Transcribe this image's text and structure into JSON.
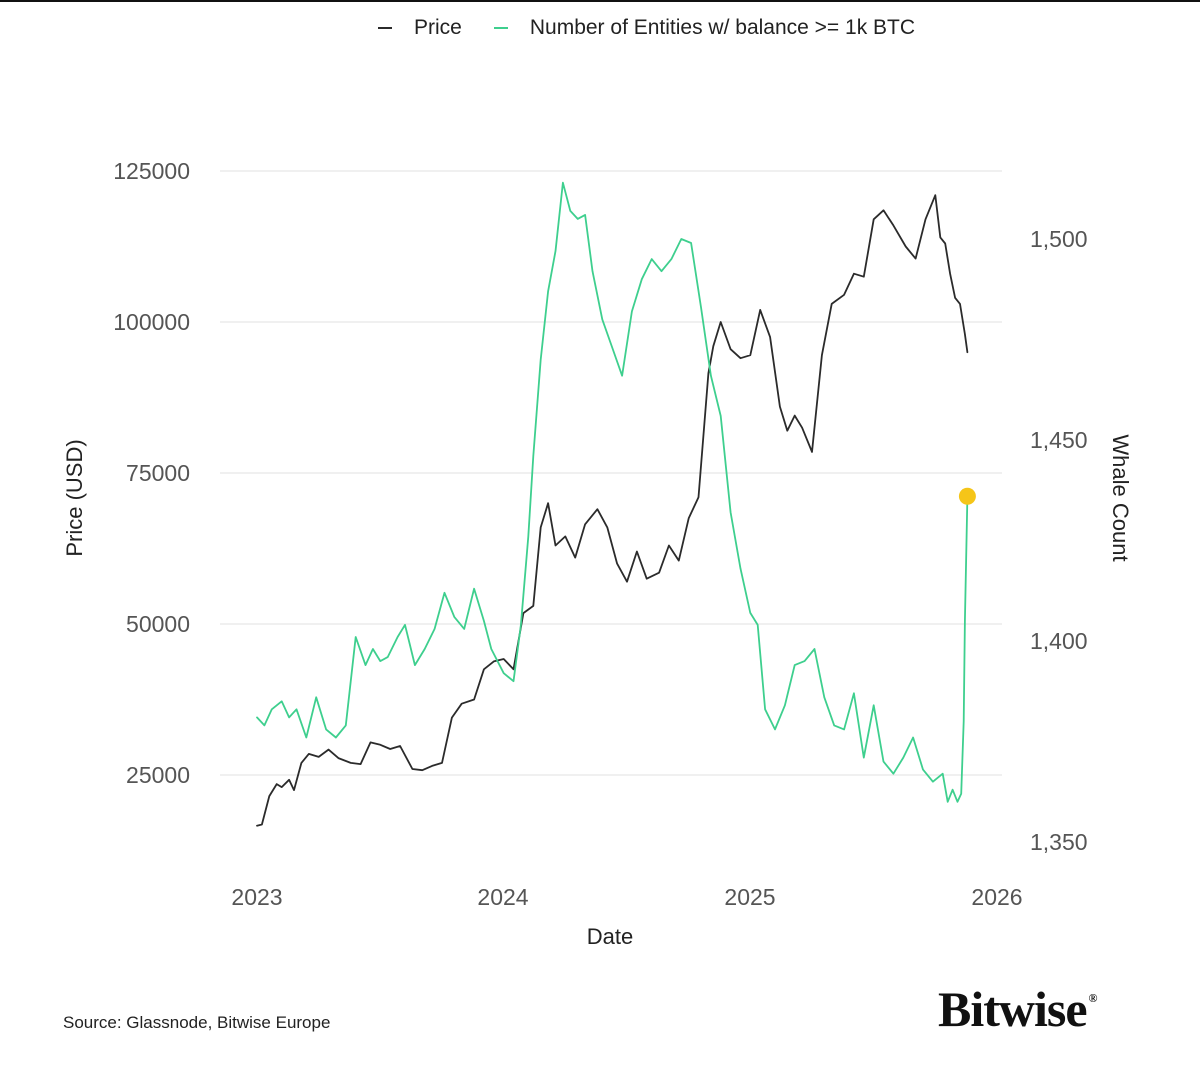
{
  "chart_data": {
    "type": "line",
    "legend_position": "top",
    "x_axis": {
      "label": "Date",
      "ticks": [
        "2023",
        "2024",
        "2025",
        "2026"
      ],
      "range": [
        2023.0,
        2026.0
      ]
    },
    "y_left": {
      "label": "Price (USD)",
      "ticks": [
        "25000",
        "50000",
        "75000",
        "100000",
        "125000"
      ],
      "range": [
        17000,
        125000
      ],
      "grid": true
    },
    "y_right": {
      "label": "Whale Count",
      "ticks": [
        "1,350",
        "1,400",
        "1,450",
        "1,500"
      ],
      "range": [
        1350,
        1500
      ]
    },
    "series": [
      {
        "name": "Price",
        "axis": "left",
        "color": "#2b2b2b",
        "x": [
          2023.0,
          2023.02,
          2023.05,
          2023.08,
          2023.1,
          2023.13,
          2023.15,
          2023.18,
          2023.21,
          2023.25,
          2023.29,
          2023.33,
          2023.38,
          2023.42,
          2023.46,
          2023.5,
          2023.54,
          2023.58,
          2023.63,
          2023.67,
          2023.71,
          2023.75,
          2023.79,
          2023.83,
          2023.88,
          2023.92,
          2023.96,
          2024.0,
          2024.04,
          2024.08,
          2024.12,
          2024.15,
          2024.18,
          2024.21,
          2024.25,
          2024.29,
          2024.33,
          2024.38,
          2024.42,
          2024.46,
          2024.5,
          2024.54,
          2024.58,
          2024.63,
          2024.67,
          2024.71,
          2024.75,
          2024.79,
          2024.83,
          2024.85,
          2024.88,
          2024.92,
          2024.96,
          2025.0,
          2025.04,
          2025.08,
          2025.12,
          2025.15,
          2025.18,
          2025.21,
          2025.25,
          2025.29,
          2025.33,
          2025.38,
          2025.42,
          2025.46,
          2025.5,
          2025.54,
          2025.58,
          2025.63,
          2025.67,
          2025.71,
          2025.75,
          2025.77,
          2025.79,
          2025.81,
          2025.83,
          2025.85,
          2025.87,
          2025.88
        ],
        "y": [
          16600,
          16800,
          21500,
          23500,
          23000,
          24200,
          22500,
          27000,
          28500,
          28000,
          29200,
          27800,
          27000,
          26800,
          30400,
          30000,
          29300,
          29800,
          26000,
          25800,
          26500,
          27000,
          34500,
          36800,
          37500,
          42500,
          43800,
          44200,
          42500,
          51800,
          53000,
          66000,
          70000,
          63000,
          64500,
          61000,
          66500,
          69000,
          66000,
          60000,
          57000,
          62000,
          57500,
          58500,
          63000,
          60500,
          67500,
          71000,
          91500,
          96000,
          100000,
          95500,
          94000,
          94500,
          102000,
          97500,
          86000,
          82000,
          84500,
          82500,
          78500,
          94500,
          103000,
          104500,
          108000,
          107500,
          117000,
          118500,
          116000,
          112500,
          110500,
          117000,
          121000,
          114000,
          113000,
          108000,
          104000,
          103000,
          98000,
          95000
        ]
      },
      {
        "name": "Number of Entities w/ balance >= 1k BTC",
        "axis": "right",
        "color": "#3ecf8e",
        "x": [
          2023.0,
          2023.03,
          2023.06,
          2023.1,
          2023.13,
          2023.16,
          2023.2,
          2023.24,
          2023.28,
          2023.32,
          2023.36,
          2023.4,
          2023.44,
          2023.47,
          2023.5,
          2023.53,
          2023.57,
          2023.6,
          2023.64,
          2023.68,
          2023.72,
          2023.76,
          2023.8,
          2023.84,
          2023.88,
          2023.92,
          2023.95,
          2024.0,
          2024.04,
          2024.07,
          2024.1,
          2024.12,
          2024.15,
          2024.18,
          2024.21,
          2024.24,
          2024.27,
          2024.3,
          2024.33,
          2024.36,
          2024.4,
          2024.44,
          2024.48,
          2024.52,
          2024.56,
          2024.6,
          2024.64,
          2024.68,
          2024.72,
          2024.76,
          2024.8,
          2024.84,
          2024.88,
          2024.92,
          2024.96,
          2025.0,
          2025.03,
          2025.06,
          2025.1,
          2025.14,
          2025.18,
          2025.22,
          2025.26,
          2025.3,
          2025.34,
          2025.38,
          2025.42,
          2025.46,
          2025.5,
          2025.54,
          2025.58,
          2025.62,
          2025.66,
          2025.7,
          2025.74,
          2025.78,
          2025.8,
          2025.82,
          2025.84,
          2025.855,
          2025.865,
          2025.87,
          2025.88
        ],
        "y": [
          1381,
          1379,
          1383,
          1385,
          1381,
          1383,
          1376,
          1386,
          1378,
          1376,
          1379,
          1401,
          1394,
          1398,
          1395,
          1396,
          1401,
          1404,
          1394,
          1398,
          1403,
          1412,
          1406,
          1403,
          1413,
          1405,
          1398,
          1392,
          1390,
          1404,
          1426,
          1446,
          1470,
          1487,
          1497,
          1514,
          1507,
          1505,
          1506,
          1492,
          1480,
          1473,
          1466,
          1482,
          1490,
          1495,
          1492,
          1495,
          1500,
          1499,
          1483,
          1466,
          1456,
          1432,
          1418,
          1407,
          1404,
          1383,
          1378,
          1384,
          1394,
          1395,
          1398,
          1386,
          1379,
          1378,
          1387,
          1371,
          1384,
          1370,
          1367,
          1371,
          1376,
          1368,
          1365,
          1367,
          1360,
          1363,
          1360,
          1362,
          1380,
          1405,
          1436
        ]
      }
    ],
    "annotations": [
      {
        "type": "marker",
        "series": "Number of Entities w/ balance >= 1k BTC",
        "x": 2025.88,
        "y": 1436,
        "color": "#f5c518"
      }
    ]
  },
  "footer": {
    "source": "Source: Glassnode, Bitwise Europe",
    "brand": "Bitwise",
    "brand_mark": "®"
  }
}
